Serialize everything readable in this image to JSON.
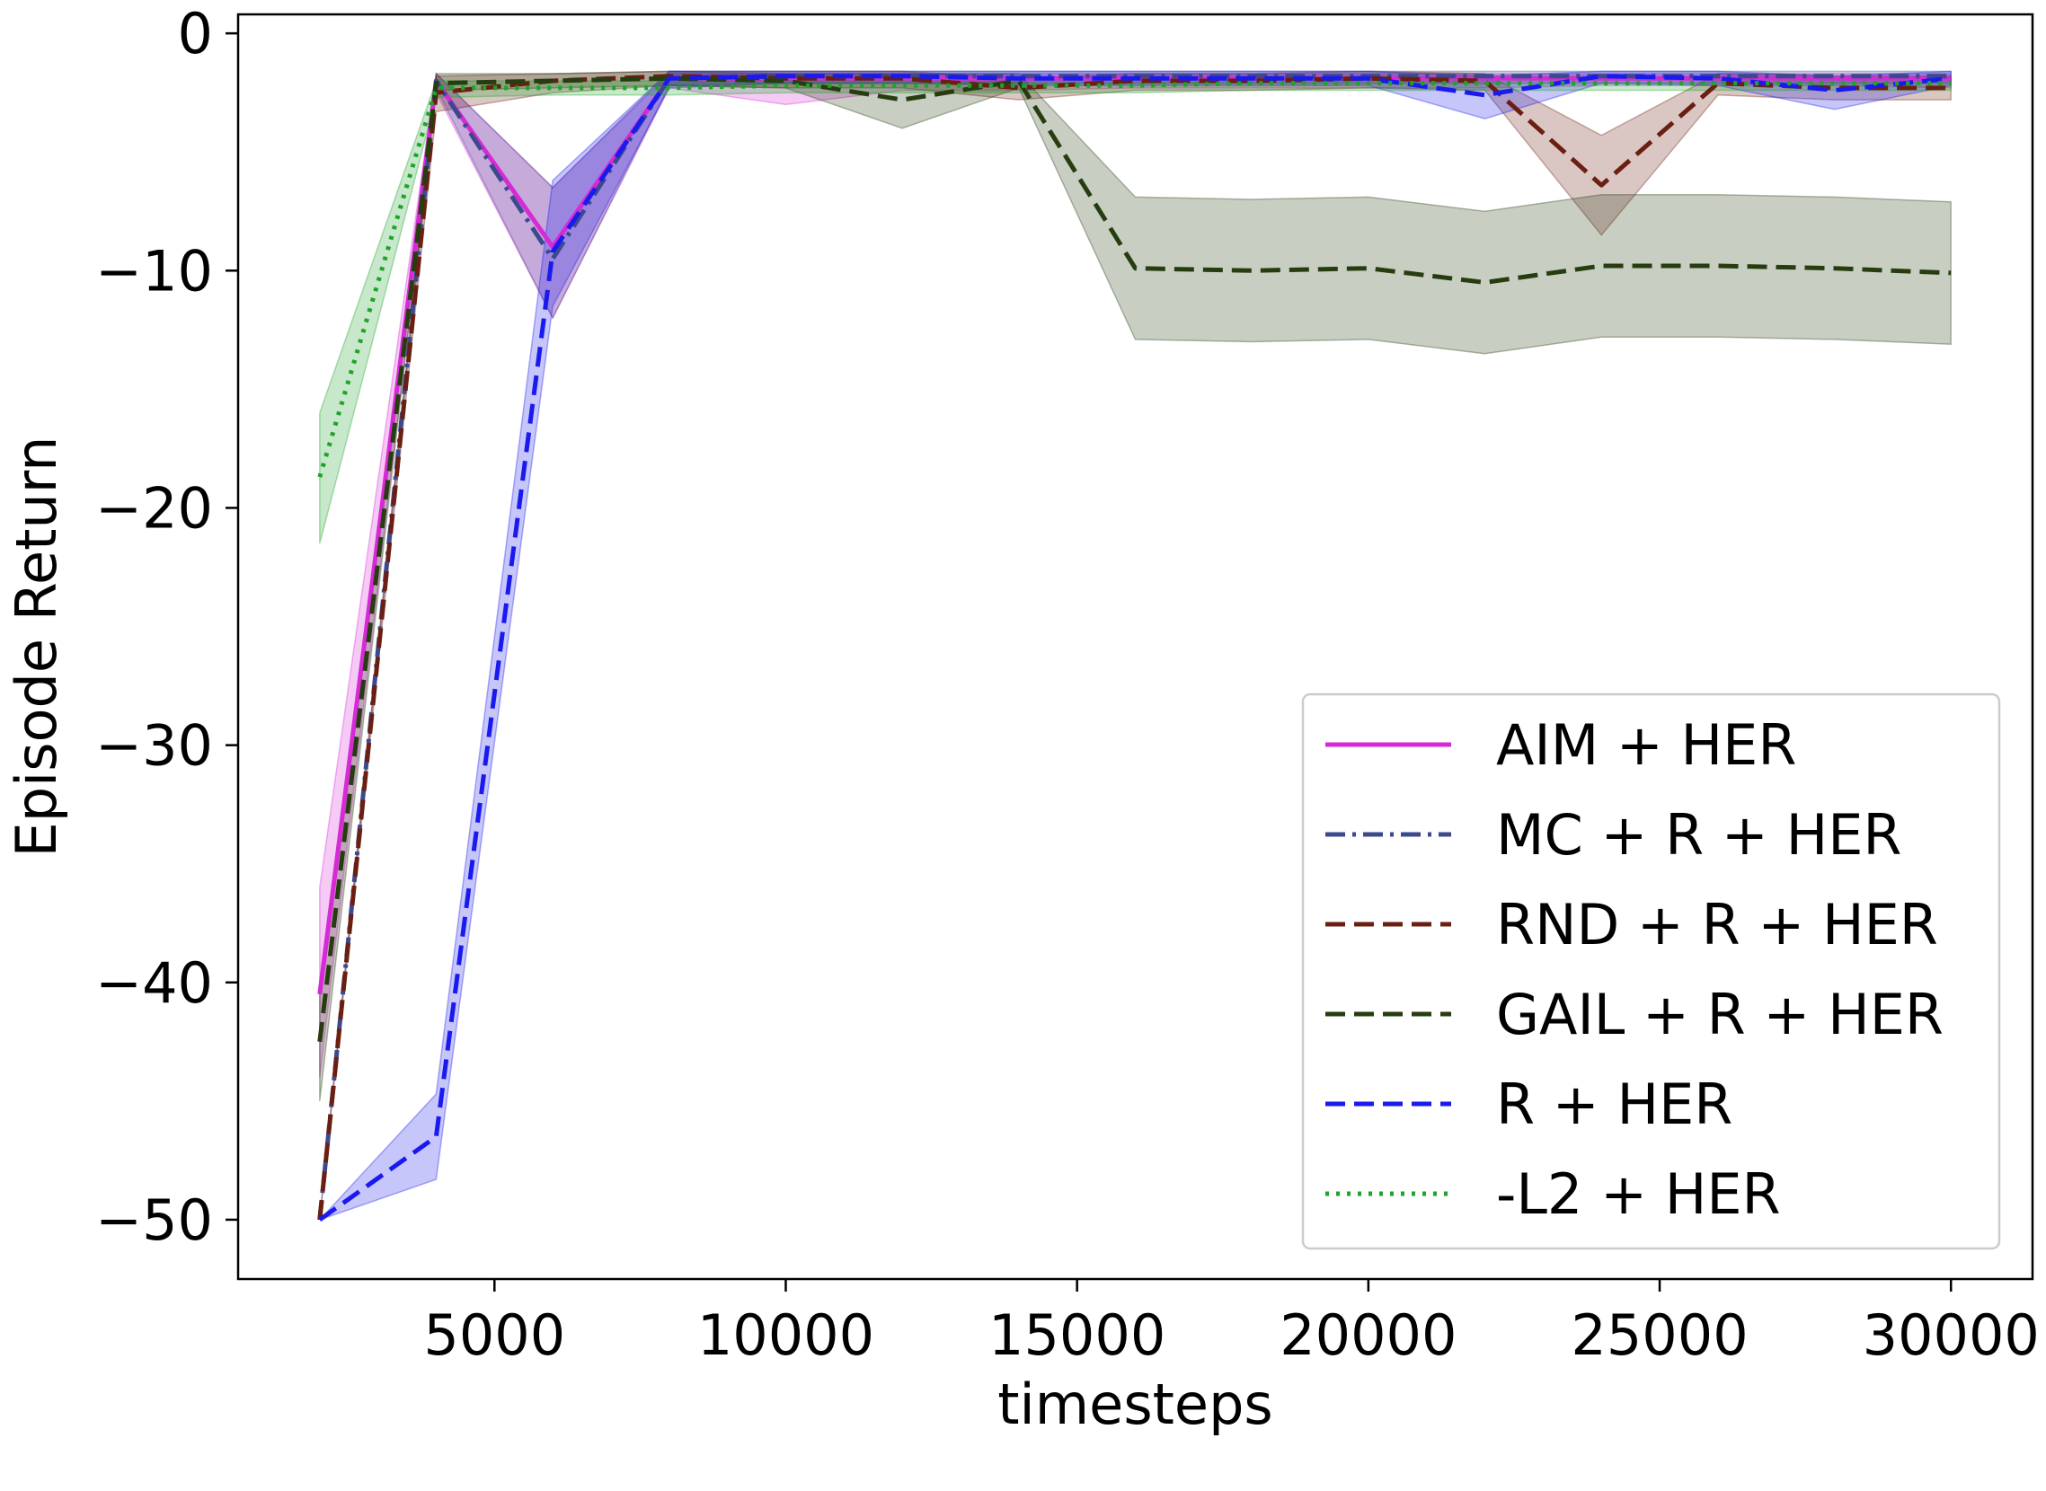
{
  "chart_data": {
    "type": "line",
    "title": "",
    "xlabel": "timesteps",
    "ylabel": "Episode Return",
    "xlim": [
      600,
      31400
    ],
    "ylim": [
      -52.5,
      0.8
    ],
    "xticks": [
      5000,
      10000,
      15000,
      20000,
      25000,
      30000
    ],
    "yticks": [
      0,
      -10,
      -20,
      -30,
      -40,
      -50
    ],
    "grid": false,
    "legend_position": "lower-right",
    "x": [
      2000,
      4000,
      6000,
      8000,
      10000,
      12000,
      14000,
      16000,
      18000,
      20000,
      22000,
      24000,
      26000,
      28000,
      30000
    ],
    "series": [
      {
        "name": "AIM + HER",
        "color": "#d62ad6",
        "dash": "solid",
        "values": [
          -40.5,
          -2.0,
          -9.0,
          -1.9,
          -1.9,
          -1.9,
          -1.9,
          -1.9,
          -1.9,
          -1.9,
          -1.9,
          -1.9,
          -1.9,
          -1.9,
          -1.9
        ],
        "lower": [
          -44.0,
          -2.5,
          -12.0,
          -2.3,
          -3.0,
          -2.4,
          -2.4,
          -2.3,
          -2.3,
          -2.3,
          -2.3,
          -2.2,
          -2.2,
          -2.2,
          -2.3
        ],
        "upper": [
          -36.0,
          -1.7,
          -6.5,
          -1.7,
          -1.7,
          -1.7,
          -1.7,
          -1.7,
          -1.7,
          -1.7,
          -1.7,
          -1.7,
          -1.7,
          -1.7,
          -1.7
        ]
      },
      {
        "name": "MC + R + HER",
        "color": "#3b4a8c",
        "dash": "dashdot",
        "values": [
          -50.0,
          -2.0,
          -9.5,
          -1.9,
          -1.8,
          -1.8,
          -1.8,
          -1.8,
          -1.8,
          -1.8,
          -1.8,
          -1.8,
          -1.8,
          -1.8,
          -1.8
        ],
        "lower": [
          -50.0,
          -2.3,
          -12.0,
          -2.2,
          -2.1,
          -2.1,
          -2.1,
          -2.1,
          -2.1,
          -2.1,
          -2.1,
          -2.1,
          -2.1,
          -2.1,
          -2.1
        ],
        "upper": [
          -50.0,
          -1.7,
          -6.5,
          -1.6,
          -1.6,
          -1.6,
          -1.6,
          -1.6,
          -1.6,
          -1.6,
          -1.6,
          -1.6,
          -1.6,
          -1.6,
          -1.6
        ]
      },
      {
        "name": "RND + R + HER",
        "color": "#6b1f12",
        "dash": "dashed",
        "values": [
          -50.0,
          -2.5,
          -2.0,
          -1.8,
          -1.9,
          -1.9,
          -2.3,
          -2.0,
          -2.0,
          -1.9,
          -2.0,
          -6.4,
          -2.1,
          -2.3,
          -2.3
        ],
        "lower": [
          -50.0,
          -3.3,
          -2.5,
          -2.2,
          -2.3,
          -2.3,
          -2.8,
          -2.4,
          -2.4,
          -2.3,
          -2.4,
          -8.5,
          -2.6,
          -2.8,
          -2.8
        ],
        "upper": [
          -50.0,
          -1.8,
          -1.7,
          -1.6,
          -1.6,
          -1.6,
          -1.9,
          -1.7,
          -1.7,
          -1.6,
          -1.7,
          -4.3,
          -1.7,
          -1.8,
          -1.8
        ]
      },
      {
        "name": "GAIL + R + HER",
        "color": "#263d10",
        "dash": "dashed",
        "values": [
          -42.5,
          -2.1,
          -2.0,
          -1.9,
          -2.0,
          -2.8,
          -2.0,
          -9.9,
          -10.0,
          -9.9,
          -10.5,
          -9.8,
          -9.8,
          -9.9,
          -10.1
        ],
        "lower": [
          -45.0,
          -2.4,
          -2.3,
          -2.2,
          -2.3,
          -4.0,
          -2.3,
          -12.9,
          -13.0,
          -12.9,
          -13.5,
          -12.8,
          -12.8,
          -12.9,
          -13.1
        ],
        "upper": [
          -40.0,
          -1.7,
          -1.7,
          -1.6,
          -1.7,
          -1.7,
          -1.7,
          -6.9,
          -7.0,
          -6.9,
          -7.5,
          -6.8,
          -6.8,
          -6.9,
          -7.1
        ]
      },
      {
        "name": "R + HER",
        "color": "#1a1aee",
        "dash": "dashed",
        "values": [
          -50.0,
          -46.5,
          -9.2,
          -1.9,
          -1.8,
          -1.8,
          -1.9,
          -1.9,
          -1.9,
          -1.9,
          -2.6,
          -1.8,
          -1.9,
          -2.4,
          -1.9
        ],
        "lower": [
          -50.0,
          -48.3,
          -11.5,
          -2.3,
          -2.1,
          -2.1,
          -2.2,
          -2.2,
          -2.2,
          -2.2,
          -3.6,
          -2.1,
          -2.2,
          -3.2,
          -2.2
        ],
        "upper": [
          -50.0,
          -44.7,
          -6.2,
          -1.6,
          -1.6,
          -1.6,
          -1.6,
          -1.6,
          -1.6,
          -1.6,
          -1.8,
          -1.6,
          -1.6,
          -1.8,
          -1.6
        ]
      },
      {
        "name": "-L2 + HER",
        "color": "#1fa32a",
        "dash": "dotted",
        "values": [
          -18.7,
          -2.3,
          -2.3,
          -2.3,
          -2.2,
          -2.2,
          -2.2,
          -2.2,
          -2.1,
          -2.1,
          -2.1,
          -2.1,
          -2.1,
          -2.1,
          -2.1
        ],
        "lower": [
          -21.5,
          -2.7,
          -2.6,
          -2.6,
          -2.5,
          -2.5,
          -2.5,
          -2.5,
          -2.4,
          -2.4,
          -2.4,
          -2.4,
          -2.4,
          -2.4,
          -2.4
        ],
        "upper": [
          -16.0,
          -2.0,
          -2.0,
          -2.0,
          -1.9,
          -1.9,
          -1.9,
          -1.9,
          -1.8,
          -1.8,
          -1.8,
          -1.8,
          -1.8,
          -1.8,
          -1.8
        ]
      }
    ]
  }
}
